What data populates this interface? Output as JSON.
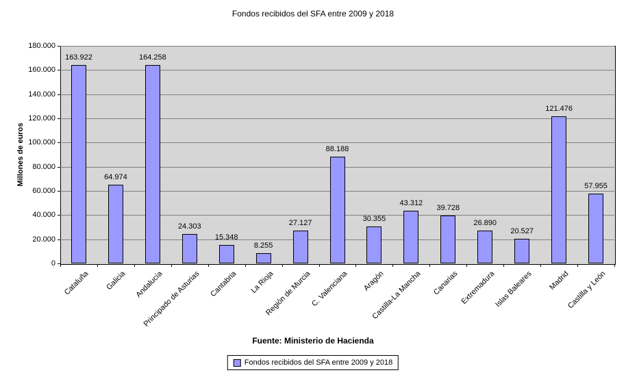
{
  "title": "Fondos recibidos del SFA entre 2009 y 2018",
  "source": "Fuente: Ministerio de Hacienda",
  "legend": {
    "label": "Fondos recibidos del SFA entre 2009 y 2018"
  },
  "chart_data": {
    "type": "bar",
    "title": "Fondos recibidos del SFA entre 2009 y 2018",
    "xlabel": "",
    "ylabel": "Millones de euros",
    "categories": [
      "Cataluña",
      "Galicia",
      "Andalucía",
      "Principado de Asturias",
      "Cantabria",
      "La Rioja",
      "Región de Murcia",
      "C. Valenciana",
      "Aragón",
      "Castilla-La Mancha",
      "Canarias",
      "Extremadura",
      "Islas Baleares",
      "Madrid",
      "Castilla y León"
    ],
    "values": [
      163922,
      64974,
      164258,
      24303,
      15348,
      8255,
      27127,
      88188,
      30355,
      43312,
      39728,
      26890,
      20527,
      121476,
      57955
    ],
    "value_labels": [
      "163.922",
      "64.974",
      "164.258",
      "24.303",
      "15.348",
      "8.255",
      "27.127",
      "88.188",
      "30.355",
      "43.312",
      "39.728",
      "26.890",
      "20.527",
      "121.476",
      "57.955"
    ],
    "ylim": [
      0,
      180000
    ],
    "y_tick_step": 20000,
    "y_tick_labels": [
      "0",
      "20.000",
      "40.000",
      "60.000",
      "80.000",
      "100.000",
      "120.000",
      "140.000",
      "160.000",
      "180.000"
    ],
    "grid": true,
    "legend_position": "bottom",
    "colors": {
      "bar_fill": "#9999FF",
      "bar_border": "#000000",
      "plot_bg": "#D6D6D6",
      "gridline": "#808080"
    }
  }
}
